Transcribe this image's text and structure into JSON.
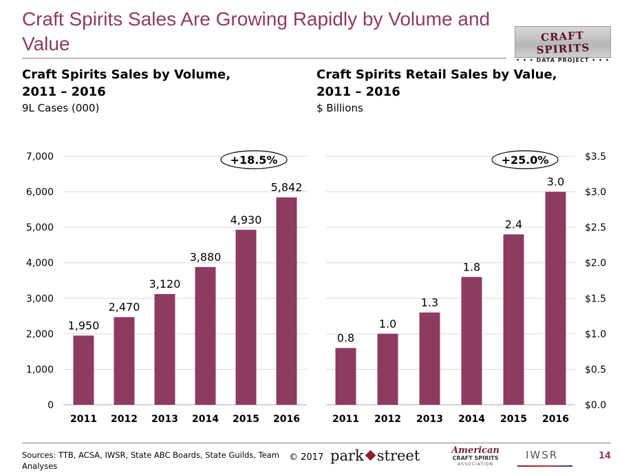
{
  "slide": {
    "title": "Craft Spirits Sales Are Growing Rapidly by Volume and Value",
    "logo": {
      "main": "CRAFT SPIRITS",
      "sub": "• • • DATA PROJECT • • •"
    },
    "page_number": "14"
  },
  "left_header": {
    "title_line1": "Craft Spirits Sales by Volume,",
    "title_line2": "2011 – 2016",
    "unit": "9L Cases (000)"
  },
  "right_header": {
    "title_line1": "Craft Spirits Retail Sales by Value,",
    "title_line2": "2011 – 2016",
    "unit": "$ Billions"
  },
  "footer": {
    "sources": "Sources: TTB, ACSA, IWSR, State ABC Boards, State Guilds, Team Analyses",
    "copyright": "© 2017",
    "park_street": {
      "left": "park",
      "right": "street"
    },
    "acsa": {
      "line1": "American",
      "line2": "CRAFT SPIRITS",
      "line3": "ASSOCIATION"
    },
    "iwsr": "IWSR"
  },
  "colors": {
    "bar": "#8e3b62",
    "title": "#8e3b62",
    "grid": "#d9d9d9"
  },
  "chart_data": [
    {
      "type": "bar",
      "title": "Craft Spirits Sales by Volume, 2011 – 2016",
      "ylabel": "9L Cases (000)",
      "categories": [
        "2011",
        "2012",
        "2013",
        "2014",
        "2015",
        "2016"
      ],
      "values": [
        1950,
        2470,
        3120,
        3880,
        4930,
        5842
      ],
      "data_labels": [
        "1,950",
        "2,470",
        "3,120",
        "3,880",
        "4,930",
        "5,842"
      ],
      "ylim": [
        0,
        7000
      ],
      "yticks": [
        0,
        1000,
        2000,
        3000,
        4000,
        5000,
        6000,
        7000
      ],
      "ytick_labels": [
        "0",
        "1,000",
        "2,000",
        "3,000",
        "4,000",
        "5,000",
        "6,000",
        "7,000"
      ],
      "axis_side": "left",
      "grid": true,
      "annotation": "+18.5%"
    },
    {
      "type": "bar",
      "title": "Craft Spirits Retail Sales by Value, 2011 – 2016",
      "ylabel": "$ Billions",
      "categories": [
        "2011",
        "2012",
        "2013",
        "2014",
        "2015",
        "2016"
      ],
      "values": [
        0.8,
        1.0,
        1.3,
        1.8,
        2.4,
        3.0
      ],
      "data_labels": [
        "0.8",
        "1.0",
        "1.3",
        "1.8",
        "2.4",
        "3.0"
      ],
      "ylim": [
        0,
        3.5
      ],
      "yticks": [
        0,
        0.5,
        1.0,
        1.5,
        2.0,
        2.5,
        3.0,
        3.5
      ],
      "ytick_labels": [
        "$0.0",
        "$0.5",
        "$1.0",
        "$1.5",
        "$2.0",
        "$2.5",
        "$3.0",
        "$3.5"
      ],
      "axis_side": "right",
      "grid": true,
      "annotation": "+25.0%"
    }
  ]
}
